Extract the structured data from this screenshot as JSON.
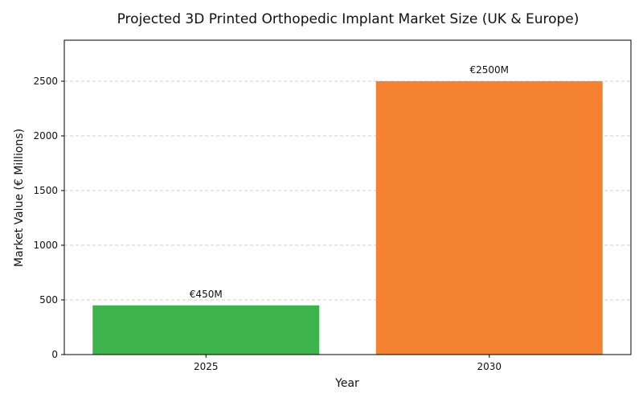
{
  "chart_data": {
    "type": "bar",
    "title": "Projected 3D Printed Orthopedic Implant Market Size (UK & Europe)",
    "xlabel": "Year",
    "ylabel": "Market Value (€ Millions)",
    "categories": [
      "2025",
      "2030"
    ],
    "values": [
      450,
      2500
    ],
    "data_labels": [
      "€450M",
      "€2500M"
    ],
    "colors": [
      "#3cb44b",
      "#f58231"
    ],
    "ylim": [
      0,
      2875
    ],
    "yticks": [
      0,
      500,
      1000,
      1500,
      2000,
      2500
    ],
    "grid": "y-dashed",
    "legend": "none"
  }
}
